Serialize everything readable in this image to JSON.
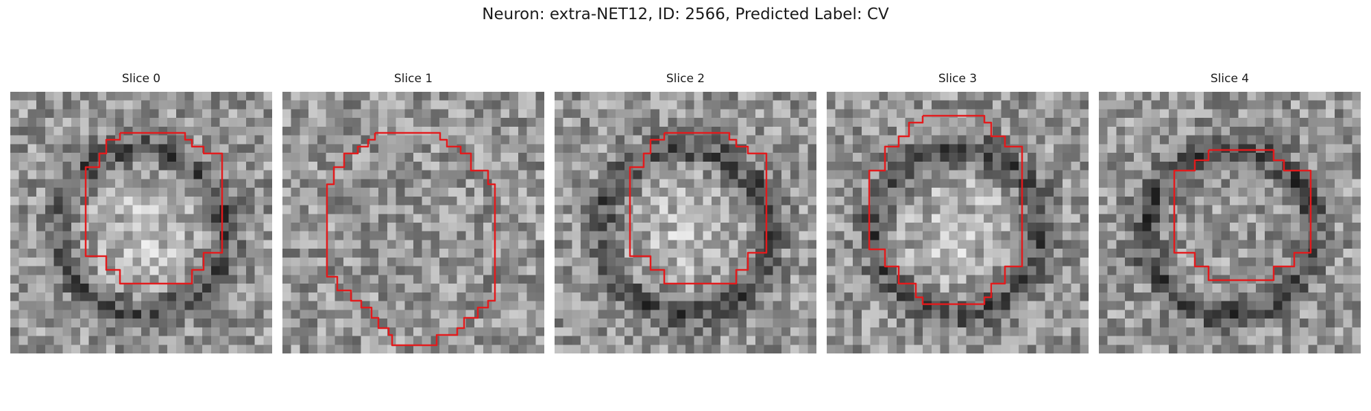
{
  "figure": {
    "title": "Neuron: extra-NET12, ID: 2566, Predicted Label: CV",
    "contour_color": "#e31a1c",
    "colormap": "gray"
  },
  "slices": [
    {
      "label": "Slice 0",
      "seed": 11,
      "bright_center": true,
      "dark_ring": true
    },
    {
      "label": "Slice 1",
      "seed": 29,
      "bright_center": false,
      "dark_ring": false
    },
    {
      "label": "Slice 2",
      "seed": 47,
      "bright_center": true,
      "dark_ring": true
    },
    {
      "label": "Slice 3",
      "seed": 83,
      "bright_center": true,
      "dark_ring": true
    },
    {
      "label": "Slice 4",
      "seed": 101,
      "bright_center": false,
      "dark_ring": true
    }
  ]
}
